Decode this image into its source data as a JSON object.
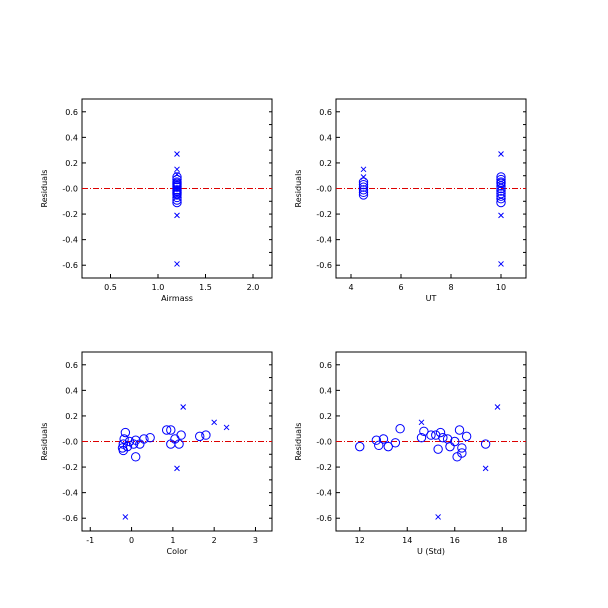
{
  "colors": {
    "marker": "#0000ff",
    "zero_line": "#dd0000",
    "axes": "#000000"
  },
  "chart_data": [
    {
      "type": "scatter",
      "name": "airmass",
      "xlabel": "Airmass",
      "ylabel": "Residuals",
      "xlim": [
        0.2,
        2.2
      ],
      "ylim": [
        -0.7,
        0.7
      ],
      "xticks": [
        "0.5",
        "1.0",
        "1.5",
        "2.0"
      ],
      "xtick_values": [
        0.5,
        1.0,
        1.5,
        2.0
      ],
      "yticks": [
        "-0.6",
        "-0.4",
        "-0.2",
        "-0.0",
        "0.2",
        "0.4",
        "0.6"
      ],
      "ytick_values": [
        -0.6,
        -0.4,
        -0.2,
        0.0,
        0.2,
        0.4,
        0.6
      ],
      "zero_line": 0.0,
      "series": [
        {
          "marker": "circle",
          "points": [
            [
              1.2,
              0.09
            ],
            [
              1.2,
              0.07
            ],
            [
              1.2,
              0.05
            ],
            [
              1.2,
              0.04
            ],
            [
              1.2,
              0.03
            ],
            [
              1.2,
              0.02
            ],
            [
              1.2,
              0.01
            ],
            [
              1.2,
              -0.01
            ],
            [
              1.2,
              -0.02
            ],
            [
              1.2,
              -0.03
            ],
            [
              1.2,
              -0.04
            ],
            [
              1.2,
              -0.05
            ],
            [
              1.2,
              -0.07
            ],
            [
              1.2,
              -0.09
            ],
            [
              1.2,
              -0.11
            ]
          ]
        },
        {
          "marker": "x",
          "points": [
            [
              1.2,
              0.27
            ],
            [
              1.2,
              0.15
            ],
            [
              1.2,
              0.11
            ],
            [
              1.2,
              -0.21
            ],
            [
              1.2,
              -0.59
            ]
          ]
        }
      ]
    },
    {
      "type": "scatter",
      "name": "ut",
      "xlabel": "UT",
      "ylabel": "Residuals",
      "xlim": [
        3.4,
        11.0
      ],
      "ylim": [
        -0.7,
        0.7
      ],
      "xticks": [
        "4",
        "6",
        "8",
        "10"
      ],
      "xtick_values": [
        4,
        6,
        8,
        10
      ],
      "yticks": [
        "-0.6",
        "-0.4",
        "-0.2",
        "-0.0",
        "0.2",
        "0.4",
        "0.6"
      ],
      "ytick_values": [
        -0.6,
        -0.4,
        -0.2,
        0.0,
        0.2,
        0.4,
        0.6
      ],
      "zero_line": 0.0,
      "series": [
        {
          "marker": "circle",
          "points": [
            [
              4.5,
              0.05
            ],
            [
              4.5,
              0.03
            ],
            [
              4.5,
              0.01
            ],
            [
              4.5,
              -0.01
            ],
            [
              4.5,
              -0.03
            ],
            [
              4.5,
              -0.05
            ],
            [
              10.0,
              0.09
            ],
            [
              10.0,
              0.07
            ],
            [
              10.0,
              0.05
            ],
            [
              10.0,
              0.04
            ],
            [
              10.0,
              0.02
            ],
            [
              10.0,
              0.0
            ],
            [
              10.0,
              -0.02
            ],
            [
              10.0,
              -0.04
            ],
            [
              10.0,
              -0.06
            ],
            [
              10.0,
              -0.08
            ],
            [
              10.0,
              -0.11
            ]
          ]
        },
        {
          "marker": "x",
          "points": [
            [
              4.5,
              0.15
            ],
            [
              4.5,
              0.09
            ],
            [
              10.0,
              0.27
            ],
            [
              10.0,
              -0.21
            ],
            [
              10.0,
              -0.59
            ]
          ]
        }
      ]
    },
    {
      "type": "scatter",
      "name": "color",
      "xlabel": "Color",
      "ylabel": "Residuals",
      "xlim": [
        -1.2,
        3.4
      ],
      "ylim": [
        -0.7,
        0.7
      ],
      "xticks": [
        "-1",
        "0",
        "1",
        "2",
        "3"
      ],
      "xtick_values": [
        -1,
        0,
        1,
        2,
        3
      ],
      "yticks": [
        "-0.6",
        "-0.4",
        "-0.2",
        "-0.0",
        "0.2",
        "0.4",
        "0.6"
      ],
      "ytick_values": [
        -0.6,
        -0.4,
        -0.2,
        0.0,
        0.2,
        0.4,
        0.6
      ],
      "zero_line": 0.0,
      "series": [
        {
          "marker": "circle",
          "points": [
            [
              -0.15,
              0.07
            ],
            [
              -0.18,
              0.02
            ],
            [
              -0.2,
              -0.02
            ],
            [
              -0.22,
              -0.05
            ],
            [
              -0.2,
              -0.07
            ],
            [
              -0.1,
              -0.04
            ],
            [
              -0.05,
              0.0
            ],
            [
              0.05,
              -0.02
            ],
            [
              0.1,
              0.01
            ],
            [
              0.1,
              -0.12
            ],
            [
              0.2,
              -0.02
            ],
            [
              0.3,
              0.02
            ],
            [
              0.45,
              0.03
            ],
            [
              0.85,
              0.09
            ],
            [
              0.95,
              0.09
            ],
            [
              0.95,
              -0.02
            ],
            [
              1.05,
              0.02
            ],
            [
              1.15,
              -0.02
            ],
            [
              1.2,
              0.05
            ],
            [
              1.65,
              0.04
            ],
            [
              1.8,
              0.05
            ]
          ]
        },
        {
          "marker": "x",
          "points": [
            [
              1.25,
              0.27
            ],
            [
              2.0,
              0.15
            ],
            [
              2.3,
              0.11
            ],
            [
              1.1,
              -0.21
            ],
            [
              -0.15,
              -0.59
            ]
          ]
        }
      ]
    },
    {
      "type": "scatter",
      "name": "ustd",
      "xlabel": "U (Std)",
      "ylabel": "Residuals",
      "xlim": [
        11.0,
        19.0
      ],
      "ylim": [
        -0.7,
        0.7
      ],
      "xticks": [
        "12",
        "14",
        "16",
        "18"
      ],
      "xtick_values": [
        12,
        14,
        16,
        18
      ],
      "yticks": [
        "-0.6",
        "-0.4",
        "-0.2",
        "-0.0",
        "0.2",
        "0.4",
        "0.6"
      ],
      "ytick_values": [
        -0.6,
        -0.4,
        -0.2,
        0.0,
        0.2,
        0.4,
        0.6
      ],
      "zero_line": 0.0,
      "series": [
        {
          "marker": "circle",
          "points": [
            [
              12.0,
              -0.04
            ],
            [
              12.7,
              0.01
            ],
            [
              12.8,
              -0.03
            ],
            [
              13.0,
              0.02
            ],
            [
              13.2,
              -0.04
            ],
            [
              13.5,
              -0.01
            ],
            [
              13.7,
              0.1
            ],
            [
              14.6,
              0.03
            ],
            [
              14.7,
              0.08
            ],
            [
              15.0,
              0.05
            ],
            [
              15.2,
              0.05
            ],
            [
              15.3,
              -0.06
            ],
            [
              15.4,
              0.07
            ],
            [
              15.5,
              0.03
            ],
            [
              15.7,
              0.02
            ],
            [
              15.8,
              -0.04
            ],
            [
              16.0,
              0.0
            ],
            [
              16.1,
              -0.12
            ],
            [
              16.2,
              0.09
            ],
            [
              16.3,
              -0.05
            ],
            [
              16.3,
              -0.09
            ],
            [
              16.5,
              0.04
            ],
            [
              17.3,
              -0.02
            ]
          ]
        },
        {
          "marker": "x",
          "points": [
            [
              17.8,
              0.27
            ],
            [
              14.6,
              0.15
            ],
            [
              17.3,
              -0.21
            ],
            [
              15.3,
              -0.59
            ]
          ]
        }
      ]
    }
  ]
}
